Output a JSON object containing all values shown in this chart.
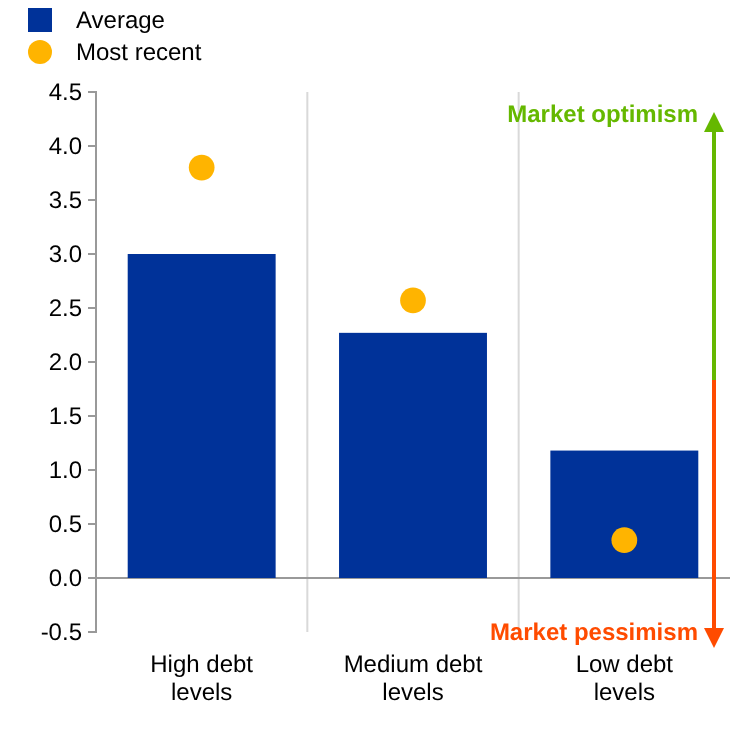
{
  "chart_data": {
    "type": "bar",
    "categories": [
      "High debt levels",
      "Medium debt levels",
      "Low debt levels"
    ],
    "series": [
      {
        "name": "Average",
        "color": "#003299",
        "values": [
          3.0,
          2.27,
          1.18
        ]
      },
      {
        "name": "Most recent",
        "type": "scatter",
        "color": "#ffb400",
        "x": [
          "High debt levels",
          "Medium debt levels",
          "Low debt levels"
        ],
        "values": [
          3.8,
          2.57,
          0.35
        ]
      }
    ],
    "ylim": [
      -0.5,
      4.5
    ],
    "yticks": [
      {
        "value": -0.5,
        "label": "-0.5"
      },
      {
        "value": 0,
        "label": "0.0"
      },
      {
        "value": 0.5,
        "label": "0.5"
      },
      {
        "value": 1,
        "label": "1.0"
      },
      {
        "value": 1.5,
        "label": "1.5"
      },
      {
        "value": 2,
        "label": "2.0"
      },
      {
        "value": 2.5,
        "label": "2.5"
      },
      {
        "value": 3,
        "label": "3.0"
      },
      {
        "value": 3.5,
        "label": "3.5"
      },
      {
        "value": 4,
        "label": "4.0"
      },
      {
        "value": 4.5,
        "label": "4.5"
      }
    ],
    "grid": "x",
    "legend": "top left",
    "marker": "circle",
    "annotations": [
      "Market optimism",
      "Market pessimism"
    ]
  }
}
